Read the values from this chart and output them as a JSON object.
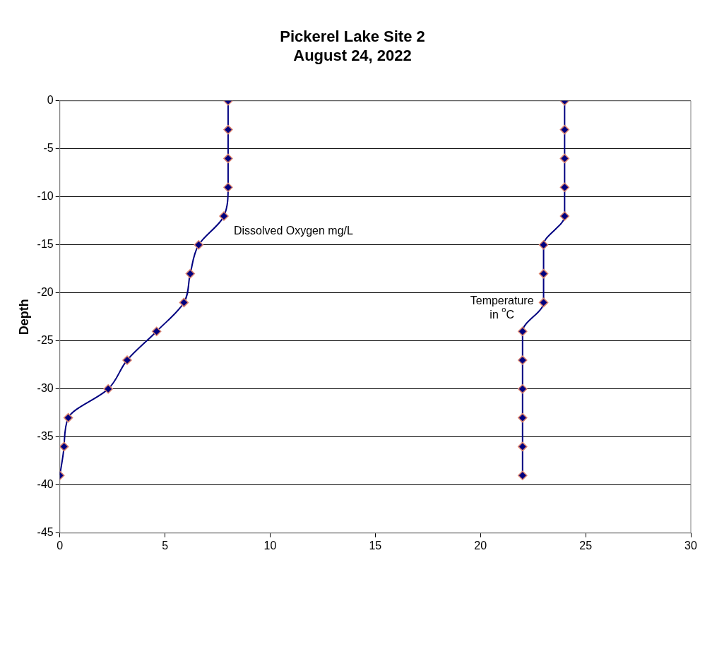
{
  "chart_data": {
    "type": "line",
    "title": "Pickerel Lake Site 2",
    "subtitle": "August 24, 2022",
    "ylabel": "Depth",
    "xlim": [
      0,
      30
    ],
    "xticks": [
      0,
      5,
      10,
      15,
      20,
      25,
      30
    ],
    "ylim": [
      -45,
      0
    ],
    "yticks": [
      -45,
      -40,
      -35,
      -30,
      -25,
      -20,
      -15,
      -10,
      -5,
      0
    ],
    "grid": "y",
    "legend": false,
    "marker": "diamond",
    "line_style": "solid",
    "series": [
      {
        "name": "Dissolved Oxygen mg/L",
        "color": "#000080",
        "x": [
          8,
          8,
          8,
          8,
          7.8,
          6.6,
          6.2,
          5.9,
          4.6,
          3.2,
          2.3,
          0.4,
          0.2,
          0
        ],
        "values": [
          0,
          -3,
          -6,
          -9,
          -12,
          -15,
          -18,
          -21,
          -24,
          -27,
          -30,
          -33,
          -36,
          -39
        ]
      },
      {
        "name": "Temperature\nin $^{o}$C",
        "color": "#000080",
        "x": [
          24,
          24,
          24,
          24,
          24,
          23,
          23,
          23,
          22,
          22,
          22,
          22,
          22,
          22
        ],
        "values": [
          0,
          -3,
          -6,
          -9,
          -12,
          -15,
          -18,
          -21,
          -24,
          -27,
          -30,
          -33,
          -36,
          -39
        ]
      }
    ]
  }
}
